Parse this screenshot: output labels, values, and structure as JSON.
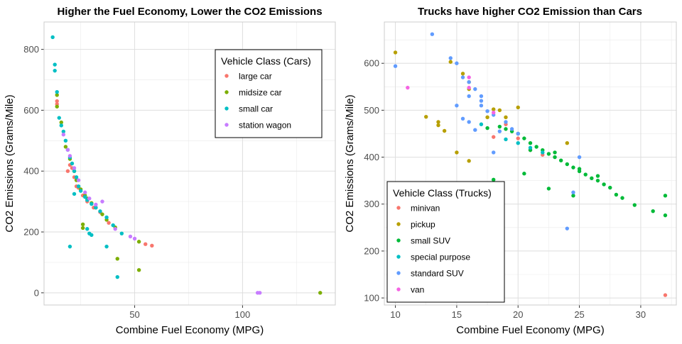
{
  "chart_data": [
    {
      "type": "scatter",
      "title": "Higher the Fuel Economy, Lower the CO2 Emissions",
      "xlabel": "Combine Fuel Economy (MPG)",
      "ylabel": "CO2 Emissions (Grams/Mile)",
      "xlim": [
        8,
        143
      ],
      "ylim": [
        -40,
        890
      ],
      "xticks": [
        50,
        100
      ],
      "yticks": [
        0,
        200,
        400,
        600,
        800
      ],
      "grid": true,
      "legend_title": "Vehicle Class (Cars)",
      "legend_position": "top-right",
      "series": [
        {
          "name": "large car",
          "color": "#F8766D",
          "points": [
            [
              14,
              630
            ],
            [
              14,
              620
            ],
            [
              19,
              400
            ],
            [
              20,
              420
            ],
            [
              21,
              410
            ],
            [
              22,
              380
            ],
            [
              23,
              350
            ],
            [
              24,
              345
            ],
            [
              26,
              320
            ],
            [
              28,
              300
            ],
            [
              31,
              280
            ],
            [
              34,
              265
            ],
            [
              38,
              230
            ],
            [
              55,
              160
            ],
            [
              58,
              155
            ]
          ]
        },
        {
          "name": "midsize car",
          "color": "#7CAE00",
          "points": [
            [
              14,
              650
            ],
            [
              14,
              612
            ],
            [
              16,
              560
            ],
            [
              18,
              480
            ],
            [
              20,
              440
            ],
            [
              22,
              400
            ],
            [
              23,
              370
            ],
            [
              25,
              340
            ],
            [
              27,
              320
            ],
            [
              28,
              310
            ],
            [
              30,
              295
            ],
            [
              32,
              280
            ],
            [
              35,
              258
            ],
            [
              37,
              240
            ],
            [
              41,
              215
            ],
            [
              26,
              225
            ],
            [
              26,
              213
            ],
            [
              42,
              112
            ],
            [
              52,
              168
            ],
            [
              52,
              75
            ],
            [
              136,
              0
            ]
          ]
        },
        {
          "name": "small car",
          "color": "#00BFC4",
          "points": [
            [
              12,
              840
            ],
            [
              13,
              750
            ],
            [
              13,
              730
            ],
            [
              14,
              660
            ],
            [
              15,
              575
            ],
            [
              16,
              550
            ],
            [
              17,
              530
            ],
            [
              18,
              500
            ],
            [
              19,
              470
            ],
            [
              20,
              445
            ],
            [
              21,
              425
            ],
            [
              22,
              400
            ],
            [
              23,
              380
            ],
            [
              24,
              350
            ],
            [
              25,
              335
            ],
            [
              27,
              315
            ],
            [
              28,
              305
            ],
            [
              30,
              292
            ],
            [
              32,
              280
            ],
            [
              34,
              268
            ],
            [
              37,
              248
            ],
            [
              40,
              222
            ],
            [
              44,
              195
            ],
            [
              22,
              325
            ],
            [
              28,
              210
            ],
            [
              29,
              195
            ],
            [
              30,
              190
            ],
            [
              20,
              152
            ],
            [
              37,
              152
            ],
            [
              42,
              52
            ]
          ]
        },
        {
          "name": "station wagon",
          "color": "#C77CFF",
          "points": [
            [
              17,
              520
            ],
            [
              19,
              470
            ],
            [
              20,
              450
            ],
            [
              22,
              410
            ],
            [
              24,
              370
            ],
            [
              27,
              330
            ],
            [
              29,
              310
            ],
            [
              32,
              290
            ],
            [
              35,
              300
            ],
            [
              41,
              210
            ],
            [
              48,
              185
            ],
            [
              50,
              178
            ],
            [
              107,
              0
            ],
            [
              108,
              0
            ]
          ]
        }
      ]
    },
    {
      "type": "scatter",
      "title": "Trucks have higher CO2 Emission than Cars",
      "xlabel": "Combine Fuel Economy (MPG)",
      "ylabel": "CO2 Emissions (Grams/Mile)",
      "xlim": [
        9.1,
        32.9
      ],
      "ylim": [
        85,
        688
      ],
      "xticks": [
        10,
        15,
        20,
        25,
        30
      ],
      "yticks": [
        100,
        200,
        300,
        400,
        500,
        600
      ],
      "grid": true,
      "legend_title": "Vehicle Class (Trucks)",
      "legend_position": "bottom-left",
      "series": [
        {
          "name": "minivan",
          "color": "#F8766D",
          "points": [
            [
              18,
              443
            ],
            [
              19,
              470
            ],
            [
              20,
              440
            ],
            [
              21,
              415
            ],
            [
              22,
              405
            ],
            [
              32,
              106
            ]
          ]
        },
        {
          "name": "pickup",
          "color": "#B79F00",
          "points": [
            [
              10,
              623
            ],
            [
              12.5,
              486
            ],
            [
              13.5,
              475
            ],
            [
              13.5,
              468
            ],
            [
              14,
              456
            ],
            [
              14.5,
              603
            ],
            [
              15,
              410
            ],
            [
              15.5,
              578
            ],
            [
              16,
              560
            ],
            [
              16,
              545
            ],
            [
              16,
              392
            ],
            [
              17.5,
              485
            ],
            [
              18,
              502
            ],
            [
              18.5,
              500
            ],
            [
              19,
              485
            ],
            [
              20,
              506
            ],
            [
              24,
              430
            ]
          ]
        },
        {
          "name": "small SUV",
          "color": "#00BA38",
          "points": [
            [
              18,
              352
            ],
            [
              17.5,
              462
            ],
            [
              18.5,
              465
            ],
            [
              19,
              460
            ],
            [
              19.5,
              455
            ],
            [
              20,
              450
            ],
            [
              20.5,
              440
            ],
            [
              21,
              430
            ],
            [
              21.5,
              422
            ],
            [
              22,
              415
            ],
            [
              22.5,
              407
            ],
            [
              23,
              400
            ],
            [
              23.5,
              393
            ],
            [
              24,
              385
            ],
            [
              24.5,
              378
            ],
            [
              25,
              370
            ],
            [
              25.5,
              363
            ],
            [
              26,
              355
            ],
            [
              26.5,
              350
            ],
            [
              27,
              342
            ],
            [
              27.5,
              335
            ],
            [
              28,
              320
            ],
            [
              28.5,
              313
            ],
            [
              29.5,
              298
            ],
            [
              31,
              285
            ],
            [
              32,
              318
            ],
            [
              32,
              276
            ],
            [
              20.5,
              365
            ],
            [
              22.5,
              333
            ],
            [
              24.5,
              318
            ],
            [
              25,
              375
            ],
            [
              26.5,
              360
            ],
            [
              21,
              415
            ],
            [
              23,
              410
            ]
          ]
        },
        {
          "name": "special purpose",
          "color": "#00BFC4",
          "points": [
            [
              17,
              470
            ],
            [
              19,
              438
            ],
            [
              20,
              430
            ],
            [
              21,
              420
            ],
            [
              22,
              410
            ]
          ]
        },
        {
          "name": "standard SUV",
          "color": "#619CFF",
          "points": [
            [
              10,
              594
            ],
            [
              13,
              662
            ],
            [
              14.5,
              611
            ],
            [
              15,
              600
            ],
            [
              15,
              510
            ],
            [
              15.5,
              570
            ],
            [
              16,
              560
            ],
            [
              16,
              530
            ],
            [
              16,
              475
            ],
            [
              16.5,
              545
            ],
            [
              17,
              530
            ],
            [
              17,
              520
            ],
            [
              17,
              510
            ],
            [
              17.5,
              498
            ],
            [
              18,
              490
            ],
            [
              18,
              410
            ],
            [
              18.5,
              455
            ],
            [
              19,
              475
            ],
            [
              19.5,
              460
            ],
            [
              20,
              450
            ],
            [
              15.5,
              482
            ],
            [
              16.5,
              458
            ],
            [
              24,
              248
            ],
            [
              25,
              400
            ],
            [
              24.5,
              325
            ]
          ]
        },
        {
          "name": "van",
          "color": "#F564E3",
          "points": [
            [
              11,
              548
            ],
            [
              16,
              570
            ],
            [
              16,
              548
            ],
            [
              18,
              495
            ]
          ]
        }
      ]
    }
  ]
}
